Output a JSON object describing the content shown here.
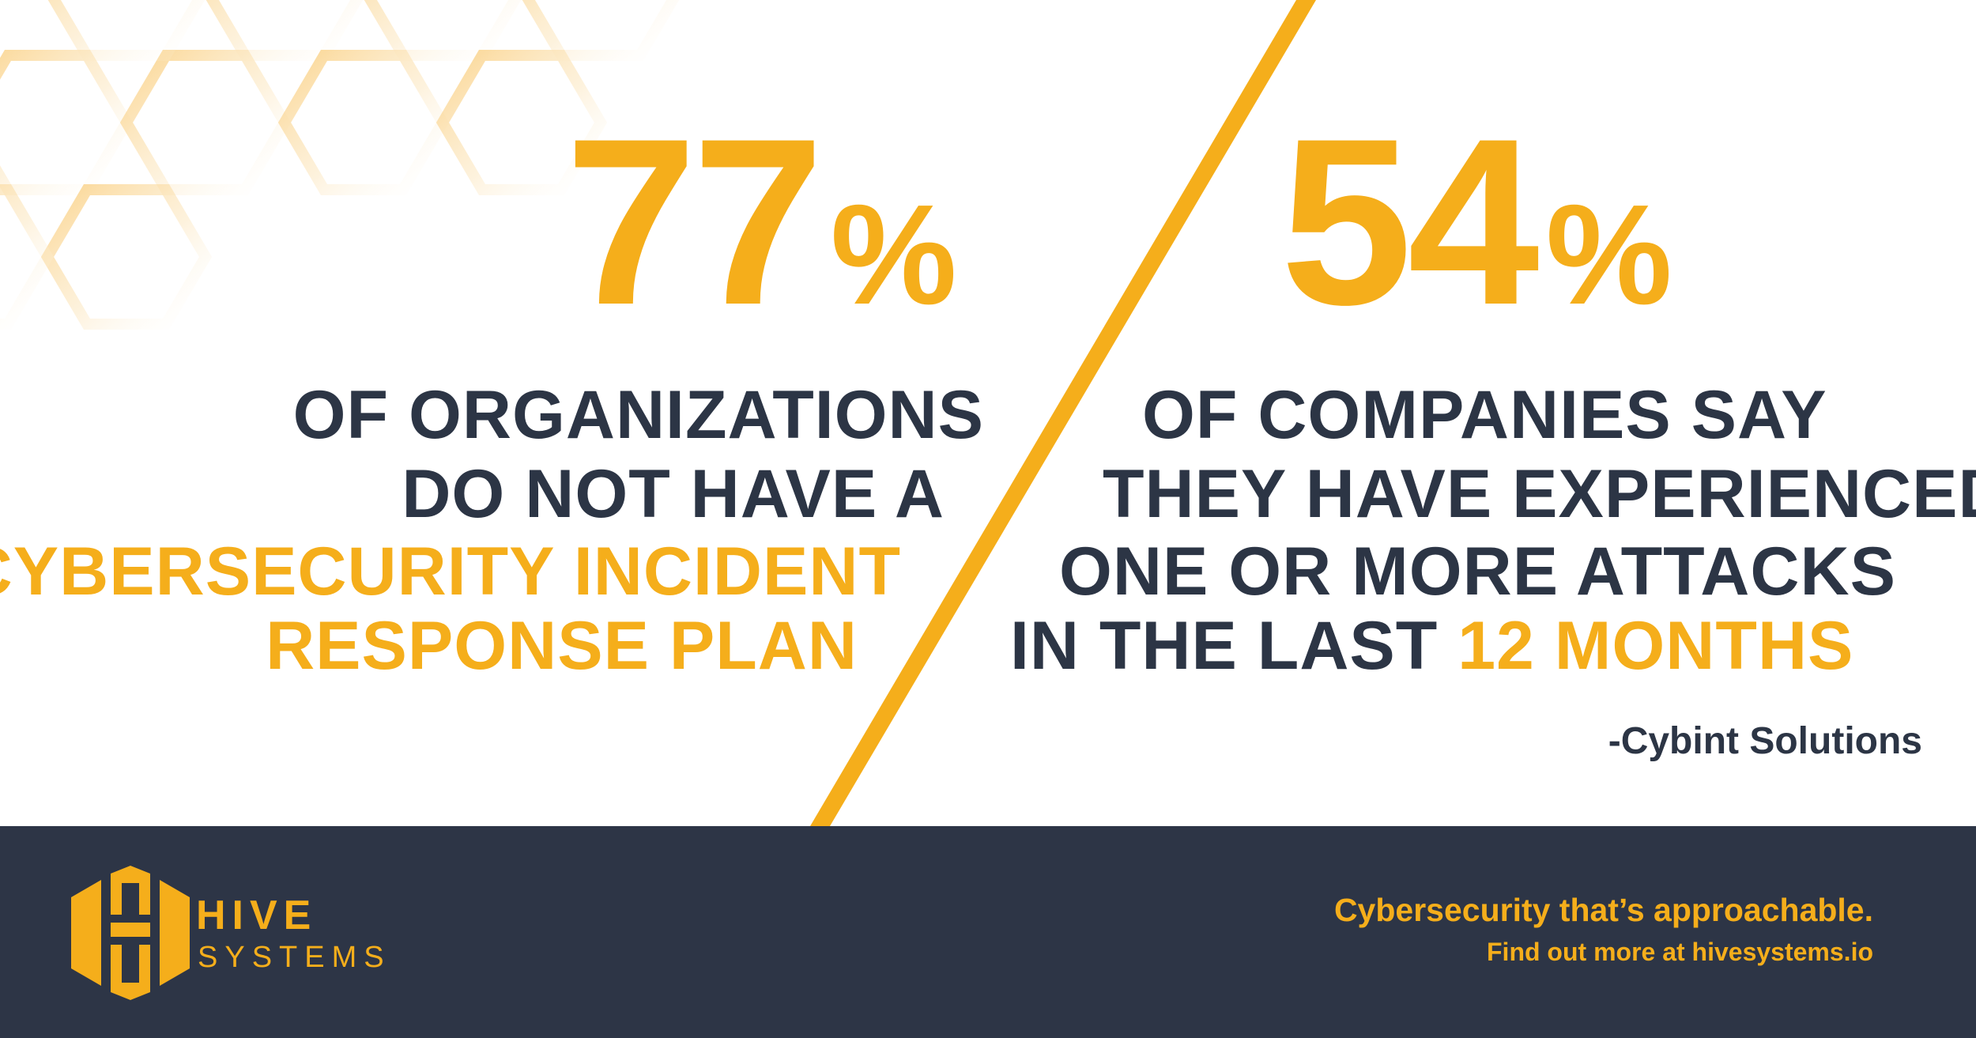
{
  "colors": {
    "accent": "#F5AE1B",
    "dark": "#2C3545",
    "footer_bg": "#2D3546",
    "background": "#FFFFFF"
  },
  "left_stat": {
    "number": "77",
    "percent_sign": "%",
    "line1": "OF ORGANIZATIONS",
    "line2": "DO NOT HAVE A",
    "line3": "CYBERSECURITY INCIDENT",
    "line4": "RESPONSE PLAN"
  },
  "right_stat": {
    "number": "54",
    "percent_sign": "%",
    "line1": "OF COMPANIES SAY",
    "line2": "THEY HAVE EXPERIENCED",
    "line3": "ONE OR MORE ATTACKS",
    "line4_prefix": "IN THE LAST ",
    "line4_highlight": "12 MONTHS"
  },
  "source": "-Cybint Solutions",
  "footer": {
    "brand_line1": "HIVE",
    "brand_line2": "SYSTEMS",
    "tagline": "Cybersecurity that’s approachable.",
    "more_info": "Find out more at hivesystems.io"
  },
  "icons": {
    "logo": "hive-logo-icon",
    "background": "honeycomb-pattern-icon"
  }
}
